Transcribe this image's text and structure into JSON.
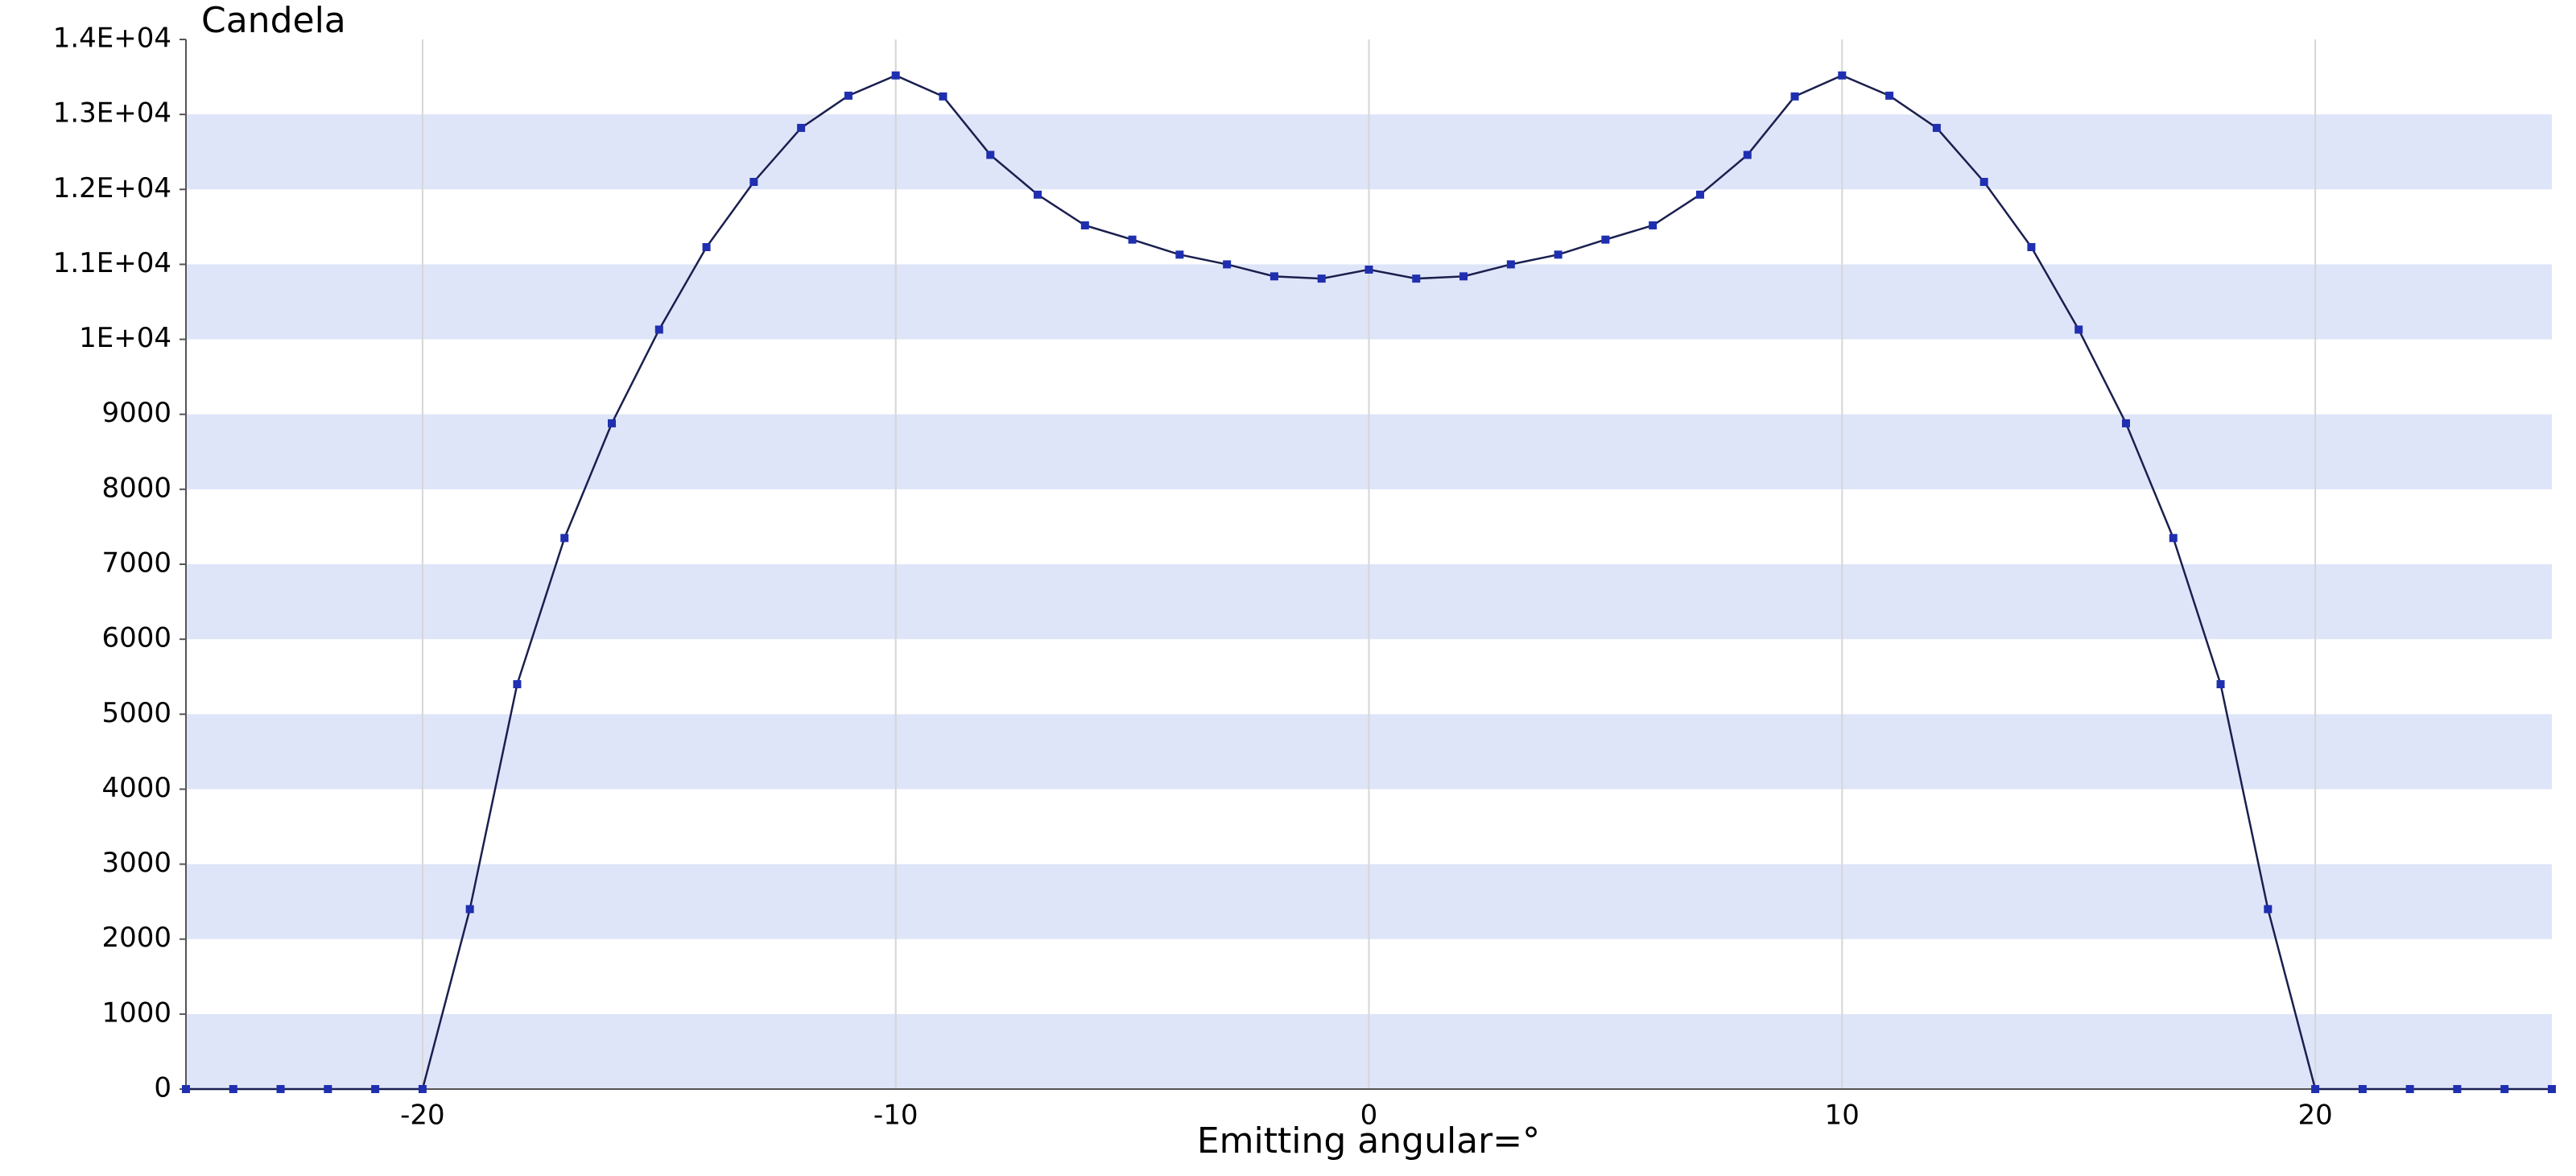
{
  "chart_data": {
    "type": "line",
    "ylabel": "Candela",
    "xlabel": "Emitting angular=°",
    "x": [
      -25,
      -24,
      -23,
      -22,
      -21,
      -20,
      -19,
      -18,
      -17,
      -16,
      -15,
      -14,
      -13,
      -12,
      -11,
      -10,
      -9,
      -8,
      -7,
      -6,
      -5,
      -4,
      -3,
      -2,
      -1,
      0,
      1,
      2,
      3,
      4,
      5,
      6,
      7,
      8,
      9,
      10,
      11,
      12,
      13,
      14,
      15,
      16,
      17,
      18,
      19,
      20,
      21,
      22,
      23,
      24,
      25
    ],
    "values": [
      0,
      0,
      0,
      0,
      0,
      0,
      2400,
      5400,
      7350,
      8880,
      10130,
      11230,
      12100,
      12820,
      13250,
      13520,
      13240,
      12460,
      11930,
      11520,
      11330,
      11130,
      11000,
      10840,
      10810,
      10930,
      10810,
      10840,
      11000,
      11130,
      11330,
      11520,
      11930,
      12460,
      13240,
      13520,
      13250,
      12820,
      12100,
      11230,
      10130,
      8880,
      7350,
      5400,
      2400,
      0,
      0,
      0,
      0,
      0,
      0
    ],
    "color": "#1a1f4f",
    "marker_color": "#1f2fb0",
    "band_color": "#dfe5f8",
    "xlim": [
      -25,
      25
    ],
    "ylim": [
      0,
      14000
    ],
    "xticks": [
      -20,
      -10,
      0,
      10,
      20
    ],
    "yticks": [
      0,
      1000,
      2000,
      3000,
      4000,
      5000,
      6000,
      7000,
      8000,
      9000,
      {
        "value": 10000,
        "label": "1E+04"
      },
      {
        "value": 11000,
        "label": "1.1E+04"
      },
      {
        "value": 12000,
        "label": "1.2E+04"
      },
      {
        "value": 13000,
        "label": "1.3E+04"
      },
      {
        "value": 14000,
        "label": "1.4E+04"
      }
    ],
    "x_grid": true,
    "y_bands": true
  }
}
